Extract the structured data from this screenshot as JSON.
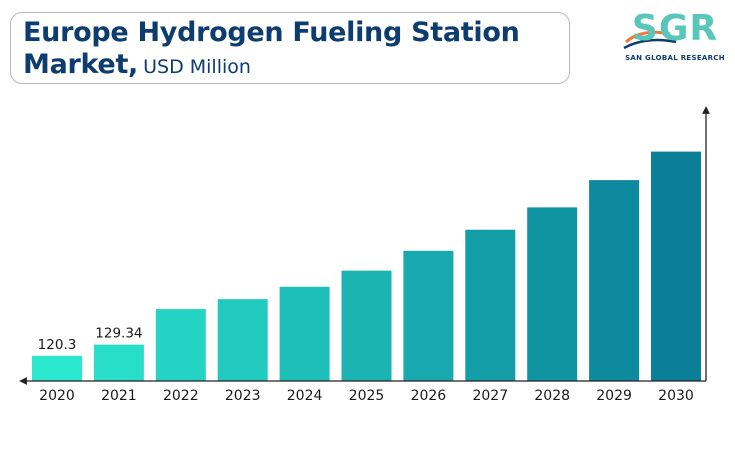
{
  "header": {
    "title_line1": "Europe Hydrogen Fueling Station",
    "title_line2_bold": "Market,",
    "title_line2_unit": "USD Million"
  },
  "logo": {
    "letters": "SGR",
    "tagline": "SAN GLOBAL RESEARCH",
    "color": "#58c7ba",
    "icon": "sgr-swoosh-logo"
  },
  "chart_data": {
    "type": "bar",
    "title": "Europe Hydrogen Fueling Station Market, USD Million",
    "xlabel": "",
    "ylabel": "",
    "categories": [
      "2020",
      "2021",
      "2022",
      "2023",
      "2024",
      "2025",
      "2026",
      "2027",
      "2028",
      "2029",
      "2030"
    ],
    "values": [
      120.3,
      129.34,
      158,
      166,
      176,
      189,
      205,
      222,
      240,
      262,
      285
    ],
    "data_labels": [
      "120.3",
      "129.34",
      "",
      "",
      "",
      "",
      "",
      "",
      "",
      "",
      ""
    ],
    "ylim": [
      100,
      300
    ],
    "grid": false,
    "legend": "none",
    "color_start": "#2be8cf",
    "color_end": "#0a7f97"
  }
}
